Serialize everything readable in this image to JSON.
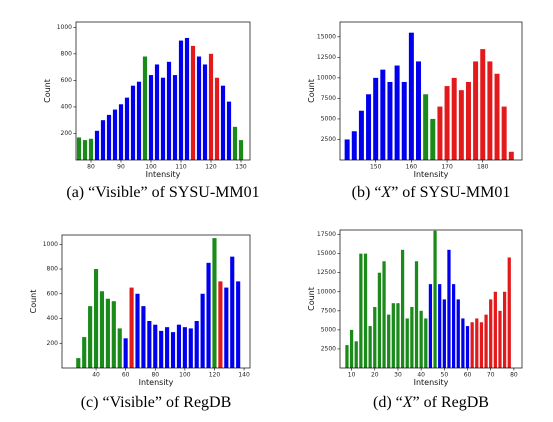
{
  "chart_data": [
    {
      "type": "bar",
      "x_label": "Intensity",
      "y_label": "Count",
      "caption": [
        "(a) “",
        "Visible",
        "” of SYSU-MM01"
      ],
      "caption_italic": false,
      "x": [
        76,
        78,
        80,
        82,
        84,
        86,
        88,
        90,
        92,
        94,
        96,
        98,
        100,
        102,
        104,
        106,
        108,
        110,
        112,
        114,
        116,
        118,
        120,
        122,
        124,
        126,
        128,
        130
      ],
      "values": [
        170,
        150,
        160,
        220,
        300,
        340,
        380,
        420,
        470,
        560,
        590,
        780,
        640,
        720,
        620,
        740,
        640,
        900,
        920,
        860,
        780,
        720,
        800,
        620,
        560,
        440,
        250,
        150
      ],
      "colors": [
        "#1a8a1a",
        "#1a8a1a",
        "#1a8a1a",
        "#0000ee",
        "#0000ee",
        "#0000ee",
        "#0000ee",
        "#0000ee",
        "#0000ee",
        "#0000ee",
        "#0000ee",
        "#1a8a1a",
        "#0000ee",
        "#0000ee",
        "#0000ee",
        "#0000ee",
        "#0000ee",
        "#0000ee",
        "#0000ee",
        "#e31a1c",
        "#0000ee",
        "#0000ee",
        "#e31a1c",
        "#e31a1c",
        "#0000ee",
        "#0000ee",
        "#1a8a1a",
        "#1a8a1a"
      ],
      "xlim": [
        75,
        133
      ],
      "ylim": [
        0,
        1040
      ],
      "xticks": [
        80,
        90,
        100,
        110,
        120,
        130
      ],
      "yticks": [
        200,
        400,
        600,
        800,
        1000
      ]
    },
    {
      "type": "bar",
      "x_label": "Intensity",
      "y_label": "Count",
      "caption": [
        "(b) “",
        "X",
        "” of SYSU-MM01"
      ],
      "caption_italic": true,
      "x": [
        142,
        144,
        146,
        148,
        150,
        152,
        154,
        156,
        158,
        160,
        162,
        164,
        166,
        168,
        170,
        172,
        174,
        176,
        178,
        180,
        182,
        184,
        186,
        188
      ],
      "values": [
        2500,
        3500,
        6000,
        8000,
        10000,
        11000,
        9500,
        11500,
        9500,
        15500,
        12000,
        8000,
        5000,
        6500,
        9000,
        10000,
        8500,
        9500,
        12000,
        13500,
        12000,
        10500,
        6500,
        1000
      ],
      "colors": [
        "#0000ee",
        "#0000ee",
        "#0000ee",
        "#0000ee",
        "#0000ee",
        "#0000ee",
        "#0000ee",
        "#0000ee",
        "#0000ee",
        "#0000ee",
        "#0000ee",
        "#1a8a1a",
        "#1a8a1a",
        "#e31a1c",
        "#e31a1c",
        "#e31a1c",
        "#e31a1c",
        "#e31a1c",
        "#e31a1c",
        "#e31a1c",
        "#e31a1c",
        "#e31a1c",
        "#e31a1c",
        "#e31a1c"
      ],
      "xlim": [
        140,
        191
      ],
      "ylim": [
        0,
        16800
      ],
      "xticks": [
        150,
        160,
        170,
        180
      ],
      "yticks": [
        2500,
        5000,
        7500,
        10000,
        12500,
        15000
      ]
    },
    {
      "type": "bar",
      "x_label": "Intensity",
      "y_label": "Count",
      "caption": [
        "(c) “",
        "Visible",
        "” of RegDB"
      ],
      "caption_italic": false,
      "x": [
        28,
        32,
        36,
        40,
        44,
        48,
        52,
        56,
        60,
        64,
        68,
        72,
        76,
        80,
        84,
        88,
        92,
        96,
        100,
        104,
        108,
        112,
        116,
        120,
        124,
        128,
        132,
        136
      ],
      "values": [
        80,
        250,
        500,
        800,
        620,
        560,
        540,
        320,
        240,
        650,
        600,
        500,
        380,
        350,
        300,
        330,
        290,
        350,
        330,
        320,
        380,
        600,
        850,
        1050,
        700,
        650,
        900,
        700
      ],
      "colors": [
        "#1a8a1a",
        "#1a8a1a",
        "#1a8a1a",
        "#1a8a1a",
        "#1a8a1a",
        "#1a8a1a",
        "#1a8a1a",
        "#1a8a1a",
        "#0000ee",
        "#e31a1c",
        "#0000ee",
        "#0000ee",
        "#0000ee",
        "#0000ee",
        "#0000ee",
        "#0000ee",
        "#0000ee",
        "#0000ee",
        "#0000ee",
        "#0000ee",
        "#0000ee",
        "#0000ee",
        "#0000ee",
        "#1a8a1a",
        "#e31a1c",
        "#0000ee",
        "#0000ee",
        "#0000ee"
      ],
      "xlim": [
        17,
        144
      ],
      "ylim": [
        0,
        1075
      ],
      "xticks": [
        40,
        60,
        80,
        100,
        120,
        140
      ],
      "yticks": [
        200,
        400,
        600,
        800,
        1000
      ]
    },
    {
      "type": "bar",
      "x_label": "Intensity",
      "y_label": "Count",
      "caption": [
        "(d) “",
        "X",
        "” of RegDB"
      ],
      "caption_italic": true,
      "x": [
        8,
        10,
        12,
        14,
        16,
        18,
        20,
        22,
        24,
        26,
        28,
        30,
        32,
        34,
        36,
        38,
        40,
        42,
        44,
        46,
        48,
        50,
        52,
        54,
        56,
        58,
        60,
        62,
        64,
        66,
        68,
        70,
        72,
        74,
        76,
        78
      ],
      "values": [
        3000,
        5000,
        3500,
        15000,
        15000,
        5500,
        8000,
        12500,
        14000,
        7000,
        8500,
        8500,
        15500,
        6500,
        8000,
        14000,
        7500,
        6500,
        11000,
        18000,
        11000,
        9000,
        15500,
        11000,
        9000,
        6500,
        5500,
        6000,
        6500,
        6000,
        7000,
        9000,
        10000,
        7500,
        10000,
        14500
      ],
      "colors": [
        "#1a8a1a",
        "#1a8a1a",
        "#1a8a1a",
        "#1a8a1a",
        "#1a8a1a",
        "#1a8a1a",
        "#1a8a1a",
        "#1a8a1a",
        "#1a8a1a",
        "#1a8a1a",
        "#1a8a1a",
        "#1a8a1a",
        "#1a8a1a",
        "#1a8a1a",
        "#1a8a1a",
        "#1a8a1a",
        "#1a8a1a",
        "#1a8a1a",
        "#0000ee",
        "#1a8a1a",
        "#0000ee",
        "#0000ee",
        "#0000ee",
        "#0000ee",
        "#0000ee",
        "#0000ee",
        "#0000ee",
        "#e31a1c",
        "#e31a1c",
        "#e31a1c",
        "#e31a1c",
        "#e31a1c",
        "#e31a1c",
        "#e31a1c",
        "#e31a1c",
        "#e31a1c"
      ],
      "xlim": [
        5,
        83.5
      ],
      "ylim": [
        0,
        18100
      ],
      "xticks": [
        10,
        20,
        30,
        40,
        50,
        60,
        70,
        80
      ],
      "yticks": [
        2500,
        5000,
        7500,
        10000,
        12500,
        15000,
        17500
      ]
    }
  ]
}
